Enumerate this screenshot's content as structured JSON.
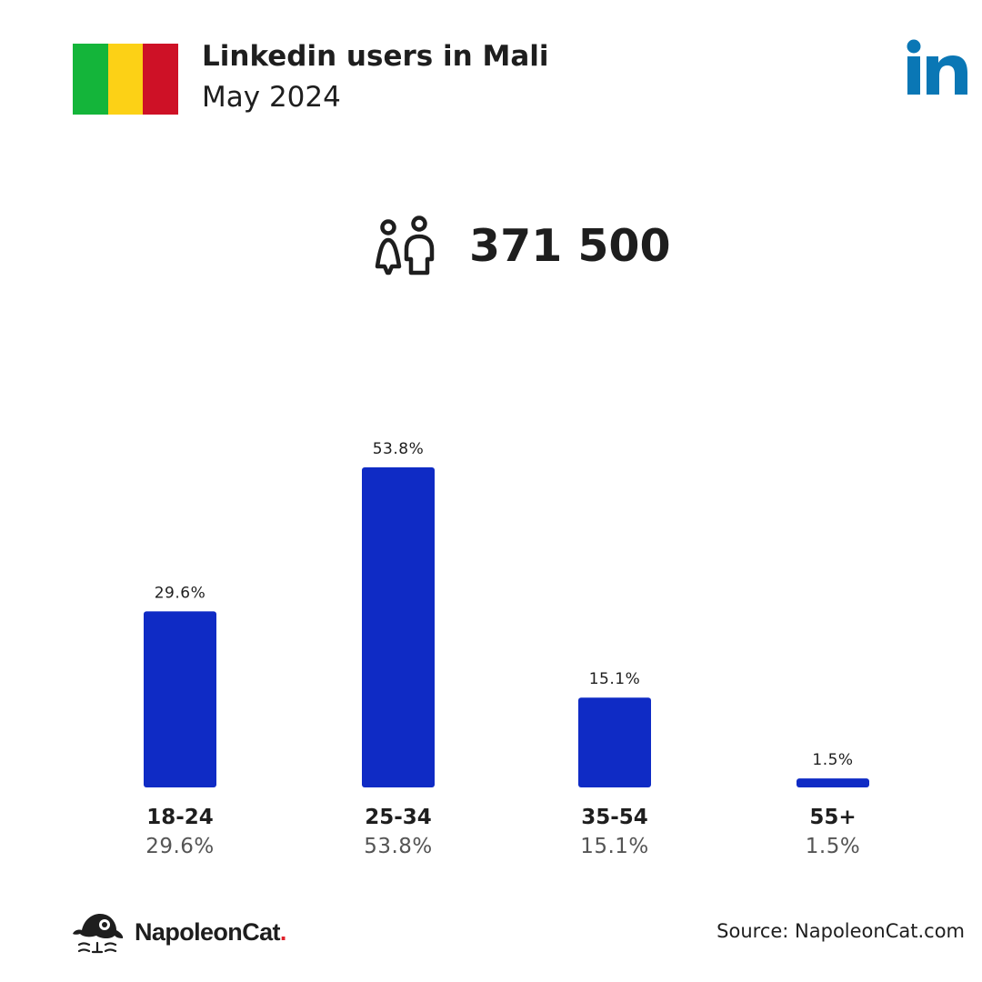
{
  "header": {
    "title": "Linkedin users in Mali",
    "subtitle": "May 2024",
    "flag_colors": [
      "#14b53a",
      "#fcd116",
      "#ce1126"
    ],
    "flag_icon": "mali-flag-icon",
    "logo_icon": "linkedin-logo-icon"
  },
  "total": {
    "icon": "people-icon",
    "value": "371 500"
  },
  "chart_data": {
    "type": "bar",
    "categories": [
      "18-24",
      "25-34",
      "35-54",
      "55+"
    ],
    "values": [
      29.6,
      53.8,
      15.1,
      1.5
    ],
    "value_labels": [
      "29.6%",
      "53.8%",
      "15.1%",
      "1.5%"
    ],
    "unit": "%",
    "ylim": [
      0,
      53.8
    ],
    "bar_color": "#0f2bc5",
    "grid": false,
    "legend": "none"
  },
  "footer": {
    "brand_name": "NapoleonCat",
    "brand_dot": ".",
    "brand_icon": "napoleoncat-logo-icon",
    "source": "Source: NapoleonCat.com"
  },
  "colors": {
    "linkedin_blue": "#0a77b5",
    "text_dark": "#1e1e1e",
    "text_muted": "#555555",
    "accent_dot": "#e0212b"
  }
}
